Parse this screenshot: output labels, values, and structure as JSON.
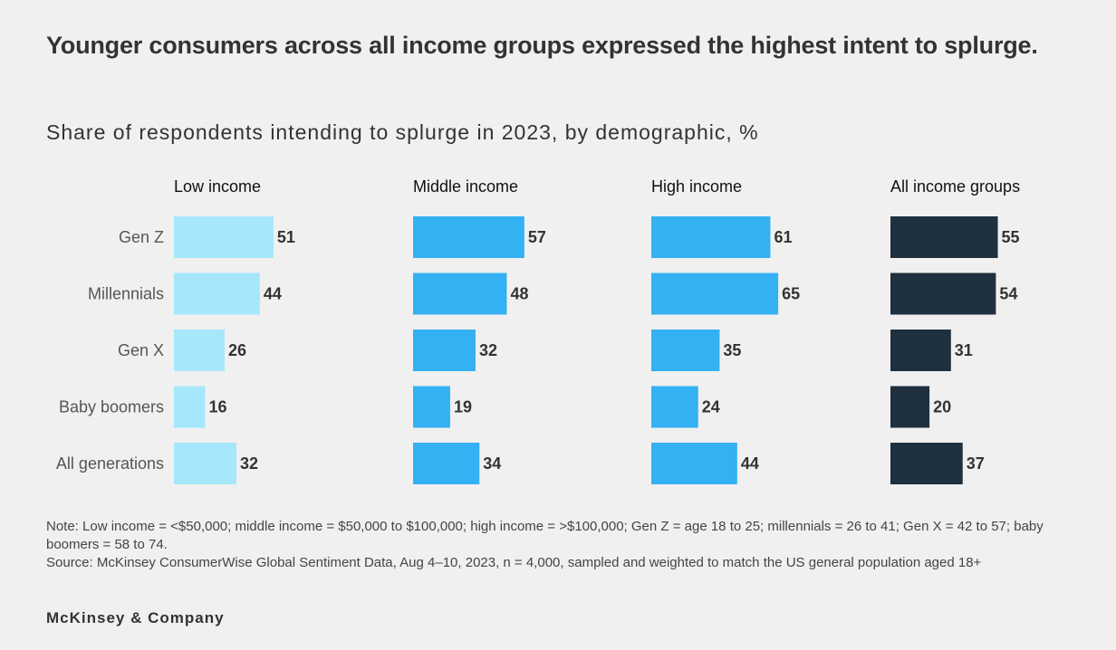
{
  "header": {
    "title": "Younger consumers across all income groups expressed the highest intent to splurge.",
    "subtitle": "Share of respondents intending to splurge in 2023, by demographic, %"
  },
  "chart_data": {
    "type": "bar",
    "orientation": "horizontal",
    "title": "Younger consumers across all income groups expressed the highest intent to splurge.",
    "subtitle": "Share of respondents intending to splurge in 2023, by demographic, %",
    "categories": [
      "Gen Z",
      "Millennials",
      "Gen X",
      "Baby boomers",
      "All generations"
    ],
    "xlim": [
      0,
      100
    ],
    "grid": false,
    "series": [
      {
        "name": "Low income",
        "color": "#a6e7fc",
        "values": [
          51,
          44,
          26,
          16,
          32
        ]
      },
      {
        "name": "Middle income",
        "color": "#33b1f2",
        "values": [
          57,
          48,
          32,
          19,
          34
        ]
      },
      {
        "name": "High income",
        "color": "#33b1f2",
        "values": [
          61,
          65,
          35,
          24,
          44
        ]
      },
      {
        "name": "All income groups",
        "color": "#1f303f",
        "values": [
          55,
          54,
          31,
          20,
          37
        ]
      }
    ]
  },
  "footer": {
    "note": "Note: Low income = <$50,000; middle income = $50,000 to $100,000; high income = >$100,000; Gen Z = age 18 to 25; millennials = 26 to 41; Gen X = 42 to 57; baby boomers = 58 to 74.",
    "source": "Source: McKinsey ConsumerWise Global Sentiment Data, Aug 4–10, 2023, n = 4,000, sampled and weighted to match the US general population aged 18+",
    "brand": "McKinsey & Company"
  }
}
